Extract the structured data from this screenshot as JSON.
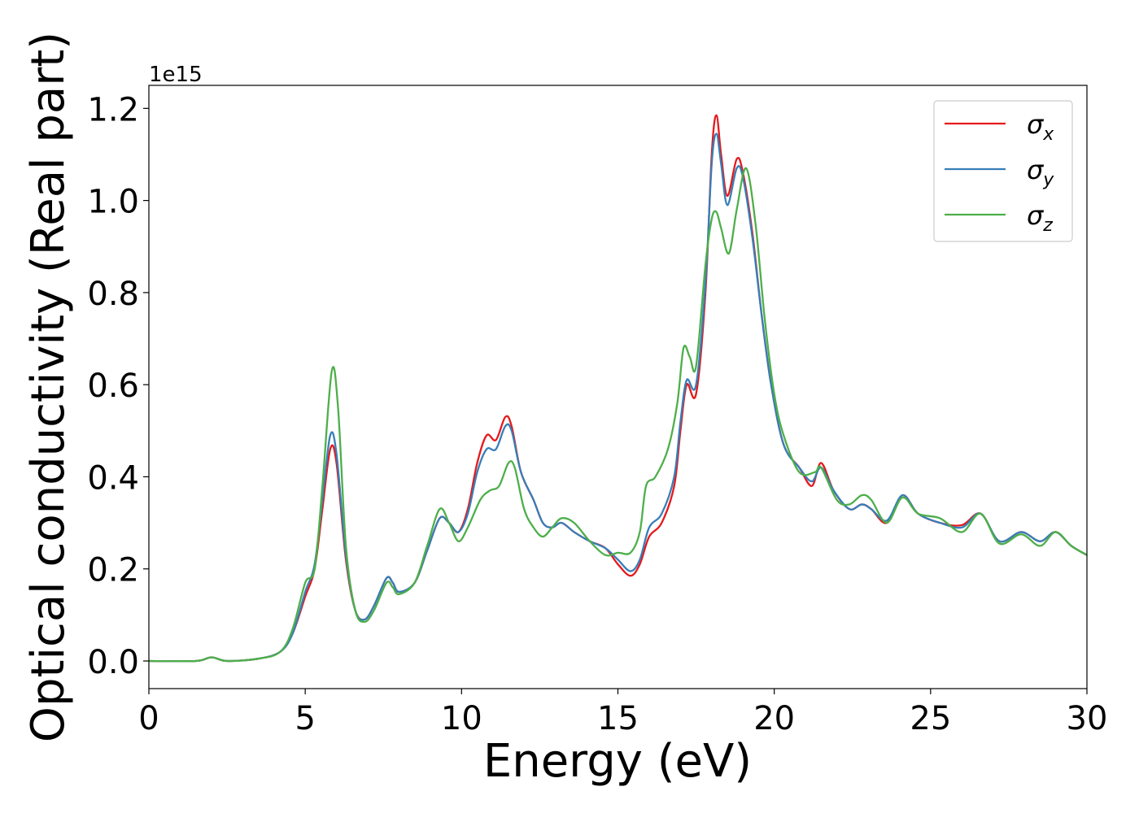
{
  "chart_data": {
    "type": "line",
    "xlabel": "Energy (eV)",
    "ylabel": "Optical conductivity (Real part)",
    "offset_label": "1e15",
    "xlim": [
      0,
      30
    ],
    "ylim": [
      -0.06,
      1.25
    ],
    "xticks": [
      0,
      5,
      10,
      15,
      20,
      25,
      30
    ],
    "xtick_labels": [
      "0",
      "5",
      "10",
      "15",
      "20",
      "25",
      "30"
    ],
    "yticks": [
      0.0,
      0.2,
      0.4,
      0.6,
      0.8,
      1.0,
      1.2
    ],
    "ytick_labels": [
      "0.0",
      "0.2",
      "0.4",
      "0.6",
      "0.8",
      "1.0",
      "1.2"
    ],
    "grid": false,
    "legend_position": "top-right",
    "series": [
      {
        "name": "σx",
        "sub": "x",
        "color": "#e41a1c",
        "points": [
          [
            0,
            0.0
          ],
          [
            1.5,
            0.0
          ],
          [
            2.0,
            0.008
          ],
          [
            2.5,
            0.0
          ],
          [
            3.5,
            0.005
          ],
          [
            4.2,
            0.02
          ],
          [
            4.6,
            0.06
          ],
          [
            5.0,
            0.14
          ],
          [
            5.3,
            0.2
          ],
          [
            5.55,
            0.33
          ],
          [
            5.8,
            0.46
          ],
          [
            6.0,
            0.43
          ],
          [
            6.3,
            0.22
          ],
          [
            6.6,
            0.11
          ],
          [
            6.9,
            0.09
          ],
          [
            7.2,
            0.12
          ],
          [
            7.6,
            0.18
          ],
          [
            7.8,
            0.17
          ],
          [
            8.0,
            0.15
          ],
          [
            8.5,
            0.17
          ],
          [
            8.9,
            0.24
          ],
          [
            9.3,
            0.31
          ],
          [
            9.6,
            0.3
          ],
          [
            9.9,
            0.28
          ],
          [
            10.2,
            0.33
          ],
          [
            10.5,
            0.43
          ],
          [
            10.8,
            0.49
          ],
          [
            11.1,
            0.48
          ],
          [
            11.4,
            0.53
          ],
          [
            11.6,
            0.51
          ],
          [
            11.9,
            0.41
          ],
          [
            12.3,
            0.35
          ],
          [
            12.6,
            0.3
          ],
          [
            12.9,
            0.29
          ],
          [
            13.2,
            0.3
          ],
          [
            13.6,
            0.28
          ],
          [
            14.1,
            0.26
          ],
          [
            14.6,
            0.245
          ],
          [
            15.0,
            0.21
          ],
          [
            15.4,
            0.185
          ],
          [
            15.7,
            0.21
          ],
          [
            16.0,
            0.27
          ],
          [
            16.4,
            0.3
          ],
          [
            16.8,
            0.38
          ],
          [
            17.0,
            0.5
          ],
          [
            17.2,
            0.6
          ],
          [
            17.5,
            0.58
          ],
          [
            17.8,
            0.8
          ],
          [
            18.0,
            1.1
          ],
          [
            18.15,
            1.185
          ],
          [
            18.3,
            1.1
          ],
          [
            18.5,
            1.01
          ],
          [
            18.8,
            1.09
          ],
          [
            19.0,
            1.06
          ],
          [
            19.3,
            0.93
          ],
          [
            19.6,
            0.75
          ],
          [
            19.9,
            0.6
          ],
          [
            20.3,
            0.47
          ],
          [
            20.8,
            0.42
          ],
          [
            21.2,
            0.38
          ],
          [
            21.5,
            0.43
          ],
          [
            21.9,
            0.37
          ],
          [
            22.4,
            0.33
          ],
          [
            22.8,
            0.34
          ],
          [
            23.1,
            0.33
          ],
          [
            23.6,
            0.3
          ],
          [
            24.1,
            0.36
          ],
          [
            24.6,
            0.32
          ],
          [
            25.3,
            0.3
          ],
          [
            26.0,
            0.295
          ],
          [
            26.6,
            0.32
          ],
          [
            27.2,
            0.26
          ],
          [
            27.9,
            0.28
          ],
          [
            28.5,
            0.26
          ],
          [
            29.0,
            0.28
          ],
          [
            29.5,
            0.25
          ],
          [
            30.0,
            0.23
          ]
        ]
      },
      {
        "name": "σy",
        "sub": "y",
        "color": "#377eb8",
        "points": [
          [
            0,
            0.0
          ],
          [
            1.5,
            0.0
          ],
          [
            2.0,
            0.008
          ],
          [
            2.5,
            0.0
          ],
          [
            3.5,
            0.005
          ],
          [
            4.2,
            0.02
          ],
          [
            4.6,
            0.06
          ],
          [
            5.0,
            0.15
          ],
          [
            5.3,
            0.21
          ],
          [
            5.55,
            0.35
          ],
          [
            5.8,
            0.49
          ],
          [
            6.0,
            0.45
          ],
          [
            6.3,
            0.23
          ],
          [
            6.6,
            0.11
          ],
          [
            6.9,
            0.09
          ],
          [
            7.2,
            0.12
          ],
          [
            7.6,
            0.18
          ],
          [
            7.8,
            0.17
          ],
          [
            8.0,
            0.15
          ],
          [
            8.5,
            0.17
          ],
          [
            8.9,
            0.24
          ],
          [
            9.3,
            0.31
          ],
          [
            9.6,
            0.3
          ],
          [
            9.9,
            0.28
          ],
          [
            10.2,
            0.32
          ],
          [
            10.5,
            0.41
          ],
          [
            10.8,
            0.46
          ],
          [
            11.1,
            0.46
          ],
          [
            11.4,
            0.51
          ],
          [
            11.6,
            0.5
          ],
          [
            11.9,
            0.41
          ],
          [
            12.3,
            0.35
          ],
          [
            12.6,
            0.3
          ],
          [
            12.9,
            0.29
          ],
          [
            13.2,
            0.3
          ],
          [
            13.6,
            0.28
          ],
          [
            14.1,
            0.26
          ],
          [
            14.6,
            0.245
          ],
          [
            15.0,
            0.22
          ],
          [
            15.4,
            0.195
          ],
          [
            15.7,
            0.22
          ],
          [
            16.0,
            0.29
          ],
          [
            16.4,
            0.32
          ],
          [
            16.8,
            0.4
          ],
          [
            17.0,
            0.52
          ],
          [
            17.2,
            0.61
          ],
          [
            17.5,
            0.6
          ],
          [
            17.8,
            0.82
          ],
          [
            18.0,
            1.08
          ],
          [
            18.15,
            1.145
          ],
          [
            18.3,
            1.08
          ],
          [
            18.5,
            0.99
          ],
          [
            18.8,
            1.07
          ],
          [
            19.0,
            1.05
          ],
          [
            19.3,
            0.92
          ],
          [
            19.6,
            0.75
          ],
          [
            19.9,
            0.6
          ],
          [
            20.3,
            0.47
          ],
          [
            20.8,
            0.42
          ],
          [
            21.2,
            0.39
          ],
          [
            21.5,
            0.42
          ],
          [
            21.9,
            0.37
          ],
          [
            22.4,
            0.33
          ],
          [
            22.8,
            0.34
          ],
          [
            23.1,
            0.33
          ],
          [
            23.6,
            0.305
          ],
          [
            24.1,
            0.36
          ],
          [
            24.6,
            0.32
          ],
          [
            25.3,
            0.3
          ],
          [
            26.0,
            0.29
          ],
          [
            26.6,
            0.32
          ],
          [
            27.2,
            0.26
          ],
          [
            27.9,
            0.28
          ],
          [
            28.5,
            0.26
          ],
          [
            29.0,
            0.28
          ],
          [
            29.5,
            0.25
          ],
          [
            30.0,
            0.23
          ]
        ]
      },
      {
        "name": "σz",
        "sub": "z",
        "color": "#4daf4a",
        "points": [
          [
            0,
            0.0
          ],
          [
            1.5,
            0.0
          ],
          [
            2.0,
            0.008
          ],
          [
            2.5,
            0.0
          ],
          [
            3.5,
            0.005
          ],
          [
            4.2,
            0.02
          ],
          [
            4.6,
            0.07
          ],
          [
            5.0,
            0.17
          ],
          [
            5.3,
            0.2
          ],
          [
            5.55,
            0.38
          ],
          [
            5.85,
            0.63
          ],
          [
            6.05,
            0.55
          ],
          [
            6.3,
            0.25
          ],
          [
            6.6,
            0.11
          ],
          [
            6.9,
            0.085
          ],
          [
            7.2,
            0.11
          ],
          [
            7.6,
            0.17
          ],
          [
            7.8,
            0.16
          ],
          [
            8.0,
            0.145
          ],
          [
            8.5,
            0.17
          ],
          [
            8.9,
            0.25
          ],
          [
            9.3,
            0.33
          ],
          [
            9.6,
            0.3
          ],
          [
            9.9,
            0.26
          ],
          [
            10.2,
            0.29
          ],
          [
            10.6,
            0.35
          ],
          [
            10.9,
            0.37
          ],
          [
            11.2,
            0.38
          ],
          [
            11.5,
            0.43
          ],
          [
            11.7,
            0.42
          ],
          [
            12.0,
            0.33
          ],
          [
            12.3,
            0.29
          ],
          [
            12.6,
            0.27
          ],
          [
            12.9,
            0.29
          ],
          [
            13.2,
            0.31
          ],
          [
            13.6,
            0.3
          ],
          [
            14.1,
            0.26
          ],
          [
            14.6,
            0.23
          ],
          [
            15.0,
            0.235
          ],
          [
            15.4,
            0.235
          ],
          [
            15.7,
            0.28
          ],
          [
            15.9,
            0.38
          ],
          [
            16.2,
            0.4
          ],
          [
            16.6,
            0.46
          ],
          [
            16.9,
            0.56
          ],
          [
            17.1,
            0.68
          ],
          [
            17.3,
            0.66
          ],
          [
            17.5,
            0.64
          ],
          [
            17.8,
            0.86
          ],
          [
            18.0,
            0.96
          ],
          [
            18.15,
            0.975
          ],
          [
            18.3,
            0.94
          ],
          [
            18.55,
            0.885
          ],
          [
            18.8,
            0.98
          ],
          [
            19.1,
            1.07
          ],
          [
            19.4,
            0.95
          ],
          [
            19.7,
            0.74
          ],
          [
            20.0,
            0.58
          ],
          [
            20.3,
            0.49
          ],
          [
            20.8,
            0.41
          ],
          [
            21.3,
            0.41
          ],
          [
            21.5,
            0.42
          ],
          [
            22.0,
            0.35
          ],
          [
            22.4,
            0.34
          ],
          [
            22.8,
            0.36
          ],
          [
            23.1,
            0.35
          ],
          [
            23.6,
            0.3
          ],
          [
            24.1,
            0.355
          ],
          [
            24.6,
            0.32
          ],
          [
            25.3,
            0.31
          ],
          [
            26.0,
            0.28
          ],
          [
            26.6,
            0.32
          ],
          [
            27.2,
            0.255
          ],
          [
            27.9,
            0.275
          ],
          [
            28.5,
            0.25
          ],
          [
            29.0,
            0.28
          ],
          [
            29.5,
            0.25
          ],
          [
            30.0,
            0.23
          ]
        ]
      }
    ]
  }
}
